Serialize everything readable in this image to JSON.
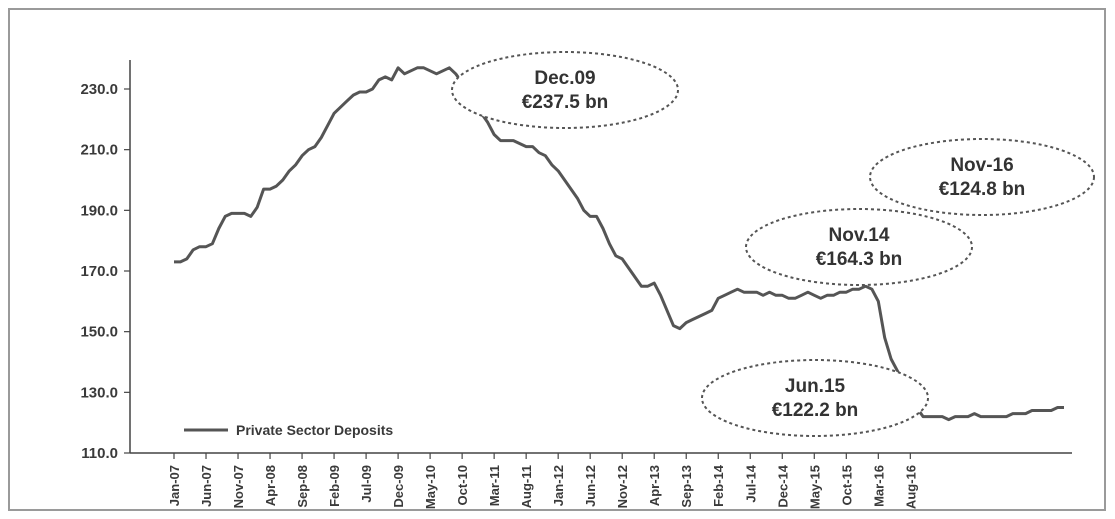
{
  "chart_data": {
    "type": "line",
    "title": "",
    "xlabel": "",
    "ylabel": "",
    "ylim": [
      110,
      240
    ],
    "yticks": [
      "110.0",
      "130.0",
      "150.0",
      "170.0",
      "190.0",
      "210.0",
      "230.0"
    ],
    "grid": false,
    "legend_position": "bottom-left",
    "x_tick_labels": [
      "Jan-07",
      "Jun-07",
      "Nov-07",
      "Apr-08",
      "Sep-08",
      "Feb-09",
      "Jul-09",
      "Dec-09",
      "May-10",
      "Oct-10",
      "Mar-11",
      "Aug-11",
      "Jan-12",
      "Jun-12",
      "Nov-12",
      "Apr-13",
      "Sep-13",
      "Feb-14",
      "Jul-14",
      "Dec-14",
      "May-15",
      "Oct-15",
      "Mar-16",
      "Aug-16"
    ],
    "series": [
      {
        "name": "Private Sector Deposits",
        "color": "#555555",
        "values": [
          173,
          173,
          174,
          177,
          178,
          178,
          179,
          184,
          188,
          189,
          189,
          189,
          188,
          191,
          197,
          197,
          198,
          200,
          203,
          205,
          208,
          210,
          211,
          214,
          218,
          222,
          224,
          226,
          228,
          229,
          229,
          230,
          233,
          234,
          233,
          237,
          235,
          236,
          237,
          237,
          236,
          235,
          236,
          237,
          235,
          232,
          229,
          226,
          222,
          219,
          215,
          213,
          213,
          213,
          212,
          211,
          211,
          209,
          208,
          205,
          203,
          200,
          197,
          194,
          190,
          188,
          188,
          184,
          179,
          175,
          174,
          171,
          168,
          165,
          165,
          166,
          162,
          157,
          152,
          151,
          153,
          154,
          155,
          156,
          157,
          161,
          162,
          163,
          164,
          163,
          163,
          163,
          162,
          163,
          162,
          162,
          161,
          161,
          162,
          163,
          162,
          161,
          162,
          162,
          163,
          163,
          164,
          164,
          165,
          164,
          160,
          148,
          141,
          137,
          133,
          128,
          125,
          122,
          122,
          122,
          122,
          121,
          122,
          122,
          122,
          123,
          122,
          122,
          122,
          122,
          122,
          123,
          123,
          123,
          124,
          124,
          124,
          124,
          125,
          125
        ]
      }
    ],
    "annotations": [
      {
        "lines": [
          "Dec.09",
          "€237.5 bn"
        ]
      },
      {
        "lines": [
          "Nov-16",
          "€124.8 bn"
        ]
      },
      {
        "lines": [
          "Nov.14",
          "€164.3 bn"
        ]
      },
      {
        "lines": [
          "Jun.15",
          "€122.2 bn"
        ]
      }
    ],
    "legend_label": "Private Sector Deposits"
  }
}
